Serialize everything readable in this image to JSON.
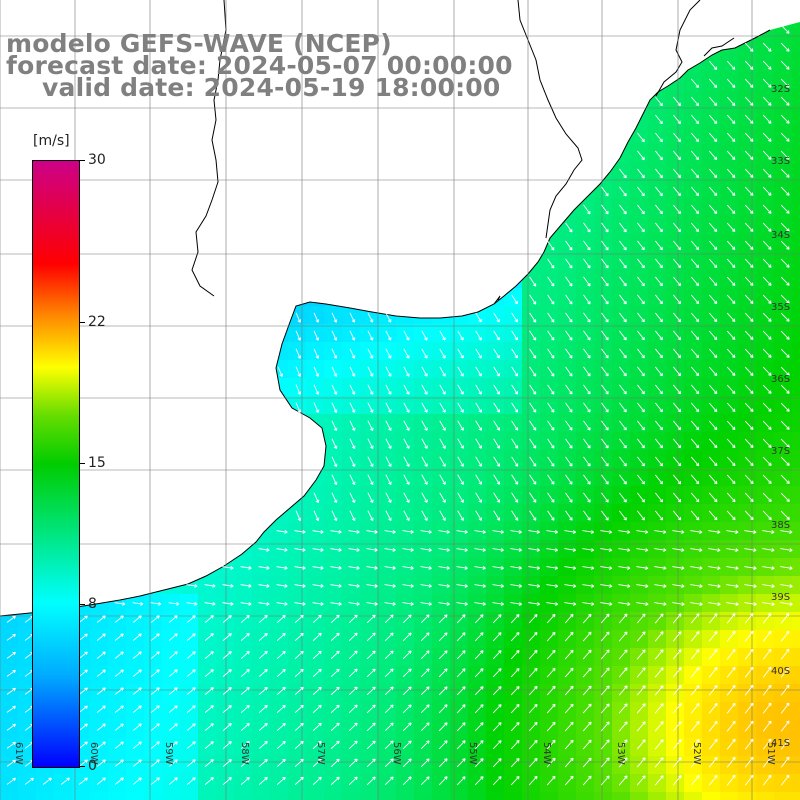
{
  "title": {
    "line1": "modelo GEFS-WAVE (NCEP)",
    "line2": "forecast date: 2024-05-07 00:00:00",
    "line3": "valid date: 2024-05-19 18:00:00"
  },
  "legend": {
    "unit": "[m/s]",
    "ticks": [
      "30",
      "22",
      "15",
      "8",
      "0"
    ],
    "tick_values": [
      30,
      22,
      15,
      8,
      0
    ],
    "range": [
      0,
      30
    ]
  },
  "colors": {
    "low": "#0000ff",
    "mid_low": "#00ffff",
    "mid": "#00cc00",
    "mid_high": "#ffff00",
    "high": "#ff0000",
    "max": "#cc0088",
    "land": "#ffffff",
    "coastline": "#000000",
    "arrows": "#ffffff"
  },
  "map": {
    "lat_labels": [
      "32S",
      "33S",
      "34S",
      "35S",
      "36S",
      "37S",
      "38S",
      "39S",
      "40S",
      "41S"
    ],
    "lon_labels": [
      "61W",
      "60W",
      "59W",
      "58W",
      "57W",
      "56W",
      "55W",
      "54W",
      "53W",
      "52W",
      "51W"
    ],
    "field": "wind speed at 10 m",
    "grid": true
  }
}
